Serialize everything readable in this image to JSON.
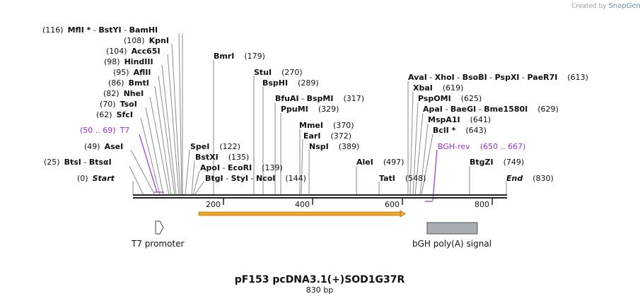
{
  "credit": {
    "created_by": "Created by",
    "brand": "SnapGene"
  },
  "map": {
    "title": "pF153 pcDNA3.1(+)SOD1G37R",
    "length_label": "830 bp",
    "length": 830,
    "ticks": [
      {
        "pos": 200,
        "label": "200"
      },
      {
        "pos": 400,
        "label": "400"
      },
      {
        "pos": 600,
        "label": "600"
      },
      {
        "pos": 800,
        "label": "800"
      }
    ]
  },
  "features": {
    "t7": {
      "label": "T7 promoter"
    },
    "bgh": {
      "label": "bGH poly(A) signal"
    }
  },
  "sites": {
    "mfl": {
      "name": "MflI *",
      "pos": "(116)"
    },
    "bstyi": {
      "name": "BstYI"
    },
    "bamhi": {
      "name": "BamHI"
    },
    "kpni": {
      "name": "KpnI",
      "pos": "(108)"
    },
    "acc65i": {
      "name": "Acc65I",
      "pos": "(104)"
    },
    "hindiii": {
      "name": "HindIII",
      "pos": "(98)"
    },
    "aflii": {
      "name": "AflII",
      "pos": "(95)"
    },
    "bmti": {
      "name": "BmtI",
      "pos": "(86)"
    },
    "nhei": {
      "name": "NheI",
      "pos": "(82)"
    },
    "tsoi": {
      "name": "TsoI",
      "pos": "(70)"
    },
    "sfci": {
      "name": "SfcI",
      "pos": "(62)"
    },
    "t7p": {
      "name": "T7",
      "pos": "(50 .. 69)"
    },
    "asei": {
      "name": "AseI",
      "pos": "(49)"
    },
    "btsi": {
      "name": "BtsI",
      "pos": "(25)"
    },
    "btsai": {
      "name": "BtsαI"
    },
    "start": {
      "name": "Start",
      "pos": "(0)"
    },
    "bmri": {
      "name": "BmrI",
      "pos": "(179)"
    },
    "spei": {
      "name": "SpeI",
      "pos": "(122)"
    },
    "bstxi": {
      "name": "BstXI",
      "pos": "(135)"
    },
    "apoi": {
      "name": "ApoI"
    },
    "ecori": {
      "name": "EcoRI",
      "pos": "(139)"
    },
    "btgi": {
      "name": "BtgI"
    },
    "styi": {
      "name": "StyI"
    },
    "ncoi": {
      "name": "NcoI",
      "pos": "(144)"
    },
    "stui": {
      "name": "StuI",
      "pos": "(270)"
    },
    "bsphi": {
      "name": "BspHI",
      "pos": "(289)"
    },
    "bfuai": {
      "name": "BfuAI"
    },
    "bspmi": {
      "name": "BspMI",
      "pos": "(317)"
    },
    "ppumi": {
      "name": "PpuMI",
      "pos": "(329)"
    },
    "mmei": {
      "name": "MmeI",
      "pos": "(370)"
    },
    "eari": {
      "name": "EarI",
      "pos": "(372)"
    },
    "nspi": {
      "name": "NspI",
      "pos": "(389)"
    },
    "alei": {
      "name": "AleI",
      "pos": "(497)"
    },
    "tati": {
      "name": "TatI",
      "pos": "(548)"
    },
    "avai": {
      "name": "AvaI"
    },
    "xhoi": {
      "name": "XhoI"
    },
    "bsobi": {
      "name": "BsoBI"
    },
    "pspxi": {
      "name": "PspXI"
    },
    "paer7i": {
      "name": "PaeR7I",
      "pos": "(613)"
    },
    "xbai": {
      "name": "XbaI",
      "pos": "(619)"
    },
    "pspomi": {
      "name": "PspOMI",
      "pos": "(625)"
    },
    "apai": {
      "name": "ApaI"
    },
    "baegi": {
      "name": "BaeGI"
    },
    "bme1580i": {
      "name": "Bme1580I",
      "pos": "(629)"
    },
    "mspa1i": {
      "name": "MspA1I",
      "pos": "(641)"
    },
    "bcli": {
      "name": "BclI *",
      "pos": "(643)"
    },
    "bghrev": {
      "name": "BGH-rev",
      "pos": "(650 .. 667)"
    },
    "btgzi": {
      "name": "BtgZI",
      "pos": "(749)"
    },
    "end": {
      "name": "End",
      "pos": "(830)"
    }
  }
}
